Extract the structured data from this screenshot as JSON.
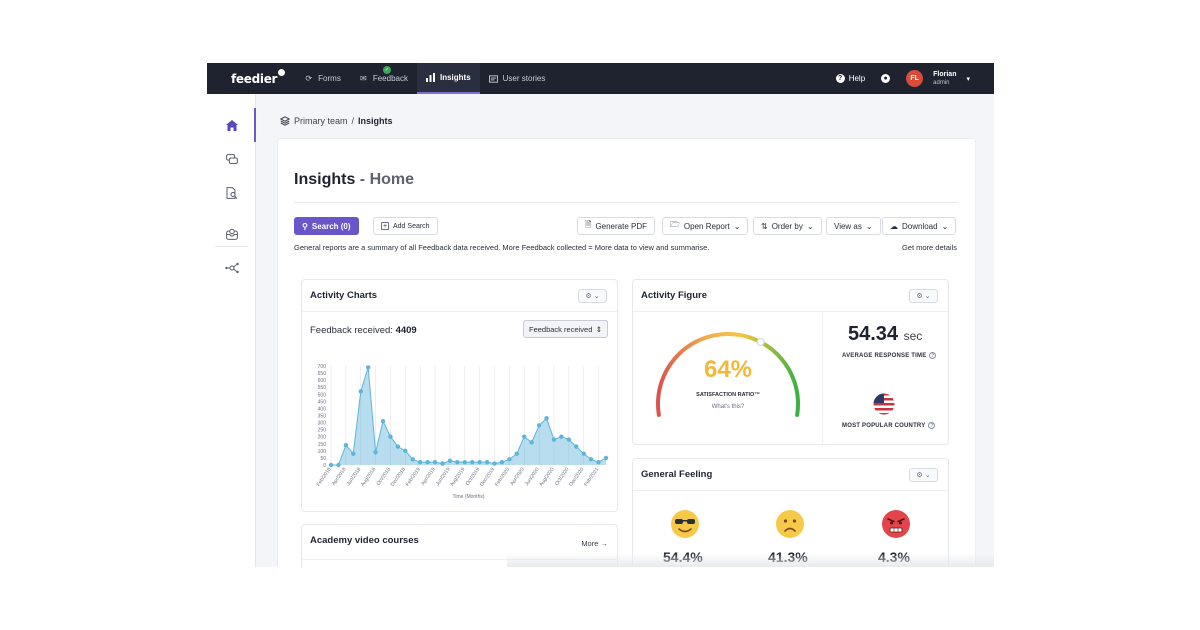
{
  "app": {
    "logo": "feedier",
    "nav": {
      "items": [
        {
          "label": "Forms",
          "icon": "forms-icon"
        },
        {
          "label": "Feedback",
          "icon": "feedback-icon"
        },
        {
          "label": "Insights",
          "icon": "insights-icon"
        },
        {
          "label": "User stories",
          "icon": "user-stories-icon"
        }
      ],
      "feedback_badge": "✓",
      "help_label": "Help",
      "user": {
        "initials": "FL",
        "name": "Florian",
        "role": "admin"
      }
    },
    "sidebar": {
      "items": [
        {
          "icon": "home-icon"
        },
        {
          "icon": "chat-icon"
        },
        {
          "icon": "document-search-icon"
        },
        {
          "icon": "inbox-icon"
        },
        {
          "icon": "network-icon"
        }
      ]
    }
  },
  "breadcrumb": {
    "team": "Primary team",
    "separator": "/",
    "page": "Insights"
  },
  "page": {
    "title": "Insights",
    "title_sep": " - ",
    "subtitle": "Home",
    "toolbar": {
      "search": "Search (0)",
      "add_search": "Add Search",
      "generate_pdf": "Generate PDF",
      "open_report": "Open Report",
      "order_by": "Order by",
      "view_as": "View as",
      "download": "Download"
    },
    "description": "General reports are a summary of all Feedback data received. More Feedback collected = More data to view and summarise.",
    "more_details": "Get more details"
  },
  "activity_charts": {
    "title": "Activity Charts",
    "received_label": "Feedback received:",
    "received_value": "4409",
    "select_value": "Feedback received"
  },
  "chart_data": {
    "type": "area",
    "x": [
      "Feb/2018",
      "Mar/2018",
      "Apr/2018",
      "May/2018",
      "Jun/2018",
      "Jul/2018",
      "Aug/2018",
      "Sep/2018",
      "Oct/2018",
      "Nov/2018",
      "Dec/2018",
      "Jan/2019",
      "Feb/2019",
      "Mar/2019",
      "Apr/2019",
      "May/2019",
      "Jun/2019",
      "Jul/2019",
      "Aug/2019",
      "Sep/2019",
      "Oct/2019",
      "Nov/2019",
      "Dec/2019",
      "Jan/2020",
      "Feb/2020",
      "Mar/2020",
      "Apr/2020",
      "May/2020",
      "Jun/2020",
      "Jul/2020",
      "Aug/2020",
      "Sep/2020",
      "Oct/2020",
      "Nov/2020",
      "Dec/2020",
      "Jan/2021",
      "Feb/2021",
      "Mar/2021"
    ],
    "tick_labels": [
      "Feb/2018",
      "Apr/2018",
      "Jun/2018",
      "Aug/2018",
      "Oct/2018",
      "Dec/2018",
      "Feb/2019",
      "Apr/2019",
      "Jun/2019",
      "Aug/2019",
      "Oct/2019",
      "Dec/2019",
      "Feb/2020",
      "Apr/2020",
      "Jun/2020",
      "Aug/2020",
      "Oct/2020",
      "Dec/2020",
      "Feb/2021"
    ],
    "values": [
      0,
      0,
      140,
      80,
      520,
      690,
      90,
      310,
      200,
      130,
      100,
      40,
      20,
      20,
      20,
      10,
      30,
      20,
      20,
      20,
      20,
      20,
      10,
      20,
      40,
      80,
      200,
      160,
      280,
      330,
      180,
      200,
      180,
      130,
      80,
      40,
      20,
      50
    ],
    "xlabel": "Time (Months)",
    "ylabel": "",
    "ylim": [
      0,
      700
    ],
    "yticks": [
      0,
      50,
      100,
      150,
      200,
      250,
      300,
      350,
      400,
      450,
      500,
      550,
      600,
      650,
      700
    ],
    "grid": true,
    "color": "#5fb4d9"
  },
  "activity_figure": {
    "title": "Activity Figure",
    "gauge_value": "64%",
    "gauge_fraction": 0.64,
    "gauge_label": "SATISFACTION RATIO™",
    "gauge_help": "What's this?",
    "response_value": "54.34",
    "response_unit": "sec",
    "response_label": "AVERAGE RESPONSE TIME",
    "country_label": "MOST POPULAR COUNTRY"
  },
  "general_feeling": {
    "title": "General Feeling",
    "items": [
      {
        "icon": "cool-face-icon",
        "value": "54.4%"
      },
      {
        "icon": "sad-face-icon",
        "value": "41.3%"
      },
      {
        "icon": "angry-face-icon",
        "value": "4.3%"
      }
    ]
  },
  "academy": {
    "title": "Academy video courses",
    "more": "More"
  }
}
